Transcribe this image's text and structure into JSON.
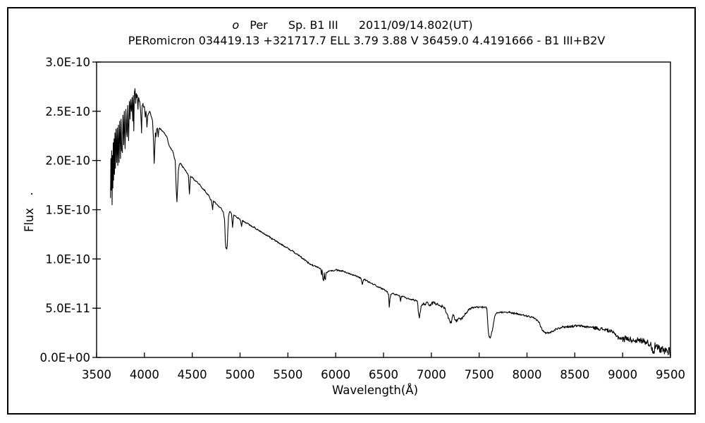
{
  "page": {
    "background": "#ffffff",
    "border_color": "#000000"
  },
  "title": {
    "star_designation_italic": "o",
    "star_name": "Per",
    "spectral_type": "Sp. B1 III",
    "observation_datetime": "2011/09/14.802(UT)",
    "catalog_line": "PERomicron 034419.13 +321717.7 ELL 3.79 3.88 V 36459.0 4.4191666 - B1 III+B2V"
  },
  "chart_data": {
    "type": "line",
    "title": "o Per  Sp. B1 III  2011/09/14.802(UT)",
    "subtitle": "PERomicron 034419.13 +321717.7 ELL 3.79 3.88 V 36459.0 4.4191666 - B1 III+B2V",
    "xlabel": "Wavelength(Å)",
    "ylabel": "Flux",
    "ylabel_suffix_dot": ".",
    "line_color": "#000000",
    "grid": false,
    "legend": "none",
    "xlim": [
      3500,
      9500
    ],
    "ylim_e10": [
      0,
      3.0
    ],
    "flux_unit_note": "flux values in units of 1e-10 (erg/cm2/s/A implied by axis labels)",
    "x_tick_values": [
      3500,
      4000,
      4500,
      5000,
      5500,
      6000,
      6500,
      7000,
      7500,
      8000,
      8500,
      9000,
      9500
    ],
    "x_tick_labels": [
      "3500",
      "4000",
      "4500",
      "5000",
      "5500",
      "6000",
      "6500",
      "7000",
      "7500",
      "8000",
      "8500",
      "9000",
      "9500"
    ],
    "y_tick_values_e10": [
      3.0,
      2.5,
      2.0,
      1.5,
      1.0,
      0.5,
      0.0
    ],
    "y_tick_labels": [
      "3.0E-10",
      "2.5E-10",
      "2.0E-10",
      "1.5E-10",
      "1.0E-10",
      "5.0E-11",
      "0.0E+00"
    ],
    "noise_seed": 987654321,
    "noise_regions_e10": [
      [
        3645,
        3960,
        0.02
      ],
      [
        3960,
        5800,
        0.008
      ],
      [
        5800,
        6850,
        0.008
      ],
      [
        6850,
        7400,
        0.015
      ],
      [
        7400,
        8140,
        0.01
      ],
      [
        8140,
        8700,
        0.012
      ],
      [
        8700,
        8950,
        0.018
      ],
      [
        8950,
        9290,
        0.03
      ],
      [
        9290,
        9501,
        0.045
      ]
    ],
    "points_e10": [
      [
        3645,
        1.62
      ],
      [
        3650,
        2.02
      ],
      [
        3654,
        1.7
      ],
      [
        3658,
        2.1
      ],
      [
        3662,
        1.55
      ],
      [
        3666,
        2.05
      ],
      [
        3670,
        1.72
      ],
      [
        3674,
        2.18
      ],
      [
        3678,
        1.8
      ],
      [
        3683,
        2.22
      ],
      [
        3687,
        1.86
      ],
      [
        3692,
        2.28
      ],
      [
        3697,
        1.92
      ],
      [
        3703,
        2.32
      ],
      [
        3710,
        1.98
      ],
      [
        3716,
        2.33
      ],
      [
        3722,
        1.95
      ],
      [
        3729,
        2.36
      ],
      [
        3735,
        1.98
      ],
      [
        3742,
        2.4
      ],
      [
        3750,
        2.02
      ],
      [
        3756,
        2.42
      ],
      [
        3762,
        2.1
      ],
      [
        3770,
        2.08
      ],
      [
        3776,
        2.46
      ],
      [
        3784,
        2.16
      ],
      [
        3790,
        2.5
      ],
      [
        3798,
        2.12
      ],
      [
        3806,
        2.52
      ],
      [
        3814,
        2.3
      ],
      [
        3820,
        2.24
      ],
      [
        3826,
        2.56
      ],
      [
        3835,
        2.2
      ],
      [
        3843,
        2.6
      ],
      [
        3850,
        2.42
      ],
      [
        3856,
        2.62
      ],
      [
        3864,
        2.5
      ],
      [
        3871,
        2.64
      ],
      [
        3878,
        2.4
      ],
      [
        3883,
        2.66
      ],
      [
        3889,
        2.3
      ],
      [
        3896,
        2.7
      ],
      [
        3902,
        2.73
      ],
      [
        3908,
        2.58
      ],
      [
        3914,
        2.68
      ],
      [
        3920,
        2.64
      ],
      [
        3927,
        2.66
      ],
      [
        3933,
        2.52
      ],
      [
        3940,
        2.64
      ],
      [
        3948,
        2.6
      ],
      [
        3955,
        2.56
      ],
      [
        3964,
        2.44
      ],
      [
        3970,
        2.28
      ],
      [
        3977,
        2.56
      ],
      [
        3985,
        2.58
      ],
      [
        3993,
        2.54
      ],
      [
        4000,
        2.55
      ],
      [
        4009,
        2.44
      ],
      [
        4017,
        2.5
      ],
      [
        4026,
        2.34
      ],
      [
        4035,
        2.46
      ],
      [
        4045,
        2.48
      ],
      [
        4055,
        2.5
      ],
      [
        4065,
        2.47
      ],
      [
        4075,
        2.44
      ],
      [
        4085,
        2.4
      ],
      [
        4095,
        2.2
      ],
      [
        4102,
        1.97
      ],
      [
        4108,
        2.12
      ],
      [
        4115,
        2.28
      ],
      [
        4121,
        2.24
      ],
      [
        4128,
        2.32
      ],
      [
        4136,
        2.33
      ],
      [
        4144,
        2.24
      ],
      [
        4152,
        2.32
      ],
      [
        4160,
        2.33
      ],
      [
        4175,
        2.31
      ],
      [
        4190,
        2.3
      ],
      [
        4205,
        2.28
      ],
      [
        4220,
        2.26
      ],
      [
        4235,
        2.24
      ],
      [
        4250,
        2.18
      ],
      [
        4265,
        2.14
      ],
      [
        4280,
        2.12
      ],
      [
        4295,
        2.1
      ],
      [
        4310,
        2.04
      ],
      [
        4322,
        2.0
      ],
      [
        4333,
        1.7
      ],
      [
        4340,
        1.58
      ],
      [
        4347,
        1.72
      ],
      [
        4355,
        1.9
      ],
      [
        4365,
        1.96
      ],
      [
        4378,
        1.97
      ],
      [
        4390,
        1.95
      ],
      [
        4405,
        1.93
      ],
      [
        4420,
        1.91
      ],
      [
        4435,
        1.89
      ],
      [
        4450,
        1.87
      ],
      [
        4460,
        1.85
      ],
      [
        4471,
        1.66
      ],
      [
        4482,
        1.84
      ],
      [
        4495,
        1.83
      ],
      [
        4510,
        1.82
      ],
      [
        4525,
        1.8
      ],
      [
        4542,
        1.79
      ],
      [
        4558,
        1.77
      ],
      [
        4575,
        1.76
      ],
      [
        4590,
        1.74
      ],
      [
        4605,
        1.72
      ],
      [
        4620,
        1.71
      ],
      [
        4635,
        1.69
      ],
      [
        4650,
        1.67
      ],
      [
        4665,
        1.65
      ],
      [
        4680,
        1.63
      ],
      [
        4690,
        1.6
      ],
      [
        4700,
        1.6
      ],
      [
        4713,
        1.5
      ],
      [
        4722,
        1.59
      ],
      [
        4735,
        1.58
      ],
      [
        4750,
        1.56
      ],
      [
        4765,
        1.55
      ],
      [
        4780,
        1.53
      ],
      [
        4795,
        1.52
      ],
      [
        4810,
        1.5
      ],
      [
        4825,
        1.48
      ],
      [
        4838,
        1.4
      ],
      [
        4846,
        1.18
      ],
      [
        4852,
        1.11
      ],
      [
        4860,
        1.1
      ],
      [
        4866,
        1.13
      ],
      [
        4872,
        1.28
      ],
      [
        4880,
        1.44
      ],
      [
        4890,
        1.48
      ],
      [
        4900,
        1.48
      ],
      [
        4910,
        1.46
      ],
      [
        4922,
        1.32
      ],
      [
        4932,
        1.44
      ],
      [
        4945,
        1.44
      ],
      [
        4960,
        1.43
      ],
      [
        4975,
        1.42
      ],
      [
        4990,
        1.41
      ],
      [
        5005,
        1.39
      ],
      [
        5016,
        1.33
      ],
      [
        5026,
        1.39
      ],
      [
        5040,
        1.38
      ],
      [
        5060,
        1.37
      ],
      [
        5080,
        1.36
      ],
      [
        5100,
        1.35
      ],
      [
        5125,
        1.33
      ],
      [
        5150,
        1.32
      ],
      [
        5175,
        1.3
      ],
      [
        5200,
        1.29
      ],
      [
        5225,
        1.27
      ],
      [
        5250,
        1.26
      ],
      [
        5275,
        1.24
      ],
      [
        5300,
        1.23
      ],
      [
        5325,
        1.21
      ],
      [
        5350,
        1.2
      ],
      [
        5375,
        1.18
      ],
      [
        5400,
        1.17
      ],
      [
        5425,
        1.15
      ],
      [
        5450,
        1.14
      ],
      [
        5475,
        1.12
      ],
      [
        5500,
        1.11
      ],
      [
        5525,
        1.09
      ],
      [
        5550,
        1.08
      ],
      [
        5575,
        1.06
      ],
      [
        5600,
        1.05
      ],
      [
        5625,
        1.03
      ],
      [
        5650,
        1.01
      ],
      [
        5675,
        0.99
      ],
      [
        5700,
        0.97
      ],
      [
        5725,
        0.95
      ],
      [
        5750,
        0.94
      ],
      [
        5775,
        0.93
      ],
      [
        5800,
        0.92
      ],
      [
        5825,
        0.91
      ],
      [
        5843,
        0.9
      ],
      [
        5852,
        0.84
      ],
      [
        5858,
        0.89
      ],
      [
        5866,
        0.8
      ],
      [
        5874,
        0.78
      ],
      [
        5880,
        0.86
      ],
      [
        5887,
        0.8
      ],
      [
        5893,
        0.79
      ],
      [
        5900,
        0.86
      ],
      [
        5915,
        0.87
      ],
      [
        5930,
        0.88
      ],
      [
        5950,
        0.88
      ],
      [
        5975,
        0.88
      ],
      [
        6000,
        0.89
      ],
      [
        6030,
        0.88
      ],
      [
        6060,
        0.88
      ],
      [
        6090,
        0.87
      ],
      [
        6120,
        0.86
      ],
      [
        6150,
        0.85
      ],
      [
        6180,
        0.84
      ],
      [
        6210,
        0.83
      ],
      [
        6240,
        0.82
      ],
      [
        6265,
        0.8
      ],
      [
        6278,
        0.74
      ],
      [
        6290,
        0.79
      ],
      [
        6305,
        0.79
      ],
      [
        6320,
        0.78
      ],
      [
        6340,
        0.77
      ],
      [
        6360,
        0.76
      ],
      [
        6380,
        0.75
      ],
      [
        6400,
        0.74
      ],
      [
        6420,
        0.73
      ],
      [
        6440,
        0.72
      ],
      [
        6460,
        0.71
      ],
      [
        6480,
        0.7
      ],
      [
        6500,
        0.69
      ],
      [
        6520,
        0.68
      ],
      [
        6540,
        0.67
      ],
      [
        6553,
        0.64
      ],
      [
        6560,
        0.51
      ],
      [
        6568,
        0.6
      ],
      [
        6578,
        0.64
      ],
      [
        6590,
        0.65
      ],
      [
        6605,
        0.65
      ],
      [
        6620,
        0.64
      ],
      [
        6640,
        0.64
      ],
      [
        6655,
        0.63
      ],
      [
        6670,
        0.62
      ],
      [
        6678,
        0.57
      ],
      [
        6686,
        0.62
      ],
      [
        6700,
        0.62
      ],
      [
        6720,
        0.61
      ],
      [
        6740,
        0.6
      ],
      [
        6760,
        0.6
      ],
      [
        6780,
        0.59
      ],
      [
        6800,
        0.59
      ],
      [
        6820,
        0.58
      ],
      [
        6840,
        0.58
      ],
      [
        6855,
        0.56
      ],
      [
        6867,
        0.44
      ],
      [
        6875,
        0.4
      ],
      [
        6884,
        0.46
      ],
      [
        6893,
        0.52
      ],
      [
        6905,
        0.54
      ],
      [
        6920,
        0.55
      ],
      [
        6935,
        0.54
      ],
      [
        6950,
        0.56
      ],
      [
        6965,
        0.55
      ],
      [
        6980,
        0.53
      ],
      [
        7000,
        0.54
      ],
      [
        7020,
        0.56
      ],
      [
        7040,
        0.55
      ],
      [
        7060,
        0.54
      ],
      [
        7080,
        0.53
      ],
      [
        7100,
        0.52
      ],
      [
        7120,
        0.52
      ],
      [
        7140,
        0.5
      ],
      [
        7160,
        0.45
      ],
      [
        7180,
        0.4
      ],
      [
        7195,
        0.36
      ],
      [
        7210,
        0.35
      ],
      [
        7222,
        0.42
      ],
      [
        7235,
        0.43
      ],
      [
        7250,
        0.38
      ],
      [
        7262,
        0.36
      ],
      [
        7275,
        0.39
      ],
      [
        7290,
        0.4
      ],
      [
        7305,
        0.39
      ],
      [
        7320,
        0.4
      ],
      [
        7340,
        0.42
      ],
      [
        7360,
        0.45
      ],
      [
        7380,
        0.47
      ],
      [
        7400,
        0.49
      ],
      [
        7420,
        0.5
      ],
      [
        7445,
        0.505
      ],
      [
        7470,
        0.51
      ],
      [
        7495,
        0.51
      ],
      [
        7520,
        0.51
      ],
      [
        7545,
        0.51
      ],
      [
        7565,
        0.51
      ],
      [
        7580,
        0.5
      ],
      [
        7588,
        0.38
      ],
      [
        7596,
        0.26
      ],
      [
        7604,
        0.21
      ],
      [
        7612,
        0.2
      ],
      [
        7620,
        0.21
      ],
      [
        7628,
        0.24
      ],
      [
        7638,
        0.27
      ],
      [
        7648,
        0.33
      ],
      [
        7658,
        0.39
      ],
      [
        7668,
        0.43
      ],
      [
        7678,
        0.445
      ],
      [
        7690,
        0.45
      ],
      [
        7710,
        0.455
      ],
      [
        7730,
        0.46
      ],
      [
        7755,
        0.462
      ],
      [
        7780,
        0.462
      ],
      [
        7805,
        0.46
      ],
      [
        7830,
        0.455
      ],
      [
        7855,
        0.45
      ],
      [
        7880,
        0.445
      ],
      [
        7905,
        0.44
      ],
      [
        7930,
        0.435
      ],
      [
        7955,
        0.43
      ],
      [
        7980,
        0.425
      ],
      [
        8005,
        0.42
      ],
      [
        8030,
        0.41
      ],
      [
        8055,
        0.405
      ],
      [
        8080,
        0.395
      ],
      [
        8105,
        0.38
      ],
      [
        8125,
        0.36
      ],
      [
        8145,
        0.31
      ],
      [
        8165,
        0.27
      ],
      [
        8185,
        0.255
      ],
      [
        8205,
        0.245
      ],
      [
        8225,
        0.25
      ],
      [
        8245,
        0.26
      ],
      [
        8265,
        0.26
      ],
      [
        8285,
        0.28
      ],
      [
        8305,
        0.29
      ],
      [
        8330,
        0.3
      ],
      [
        8355,
        0.305
      ],
      [
        8380,
        0.31
      ],
      [
        8410,
        0.31
      ],
      [
        8440,
        0.315
      ],
      [
        8470,
        0.315
      ],
      [
        8500,
        0.32
      ],
      [
        8530,
        0.32
      ],
      [
        8560,
        0.32
      ],
      [
        8590,
        0.315
      ],
      [
        8620,
        0.31
      ],
      [
        8650,
        0.31
      ],
      [
        8680,
        0.305
      ],
      [
        8710,
        0.3
      ],
      [
        8740,
        0.295
      ],
      [
        8770,
        0.29
      ],
      [
        8800,
        0.285
      ],
      [
        8830,
        0.28
      ],
      [
        8860,
        0.27
      ],
      [
        8890,
        0.26
      ],
      [
        8915,
        0.24
      ],
      [
        8940,
        0.22
      ],
      [
        8965,
        0.2
      ],
      [
        8990,
        0.19
      ],
      [
        9015,
        0.18
      ],
      [
        9040,
        0.21
      ],
      [
        9065,
        0.18
      ],
      [
        9090,
        0.18
      ],
      [
        9115,
        0.17
      ],
      [
        9140,
        0.18
      ],
      [
        9165,
        0.17
      ],
      [
        9190,
        0.17
      ],
      [
        9215,
        0.17
      ],
      [
        9240,
        0.16
      ],
      [
        9265,
        0.15
      ],
      [
        9290,
        0.13
      ],
      [
        9310,
        0.1
      ],
      [
        9322,
        0.04
      ],
      [
        9335,
        0.1
      ],
      [
        9350,
        0.12
      ],
      [
        9365,
        0.08
      ],
      [
        9380,
        0.1
      ],
      [
        9395,
        0.05
      ],
      [
        9410,
        0.09
      ],
      [
        9425,
        0.07
      ],
      [
        9440,
        0.06
      ],
      [
        9455,
        0.09
      ],
      [
        9470,
        0.05
      ],
      [
        9485,
        0.08
      ],
      [
        9500,
        0.06
      ]
    ]
  }
}
